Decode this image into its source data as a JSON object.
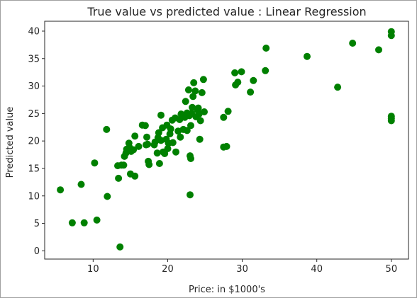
{
  "chart_data": {
    "type": "scatter",
    "title": "True value vs predicted value : Linear Regression",
    "xlabel": "Price: in $1000's",
    "ylabel": "Predicted value",
    "xlim": [
      3.5,
      52.3
    ],
    "ylim": [
      -1.5,
      41.8
    ],
    "xticks": [
      10,
      20,
      30,
      40,
      50
    ],
    "yticks": [
      0,
      5,
      10,
      15,
      20,
      25,
      30,
      35,
      40
    ],
    "marker_color": "#008000",
    "grid": false,
    "points": [
      [
        5.6,
        11.1
      ],
      [
        7.2,
        5.1
      ],
      [
        8.4,
        12.1
      ],
      [
        8.8,
        5.1
      ],
      [
        10.2,
        16.0
      ],
      [
        10.5,
        5.6
      ],
      [
        11.8,
        22.1
      ],
      [
        11.9,
        9.9
      ],
      [
        13.3,
        15.5
      ],
      [
        13.4,
        13.2
      ],
      [
        13.6,
        0.7
      ],
      [
        13.8,
        15.6
      ],
      [
        14.1,
        15.6
      ],
      [
        14.2,
        17.2
      ],
      [
        14.4,
        17.8
      ],
      [
        14.5,
        18.5
      ],
      [
        14.8,
        19.6
      ],
      [
        14.9,
        18.8
      ],
      [
        15.0,
        14.0
      ],
      [
        15.1,
        18.1
      ],
      [
        15.4,
        18.4
      ],
      [
        15.6,
        13.6
      ],
      [
        15.6,
        20.9
      ],
      [
        16.1,
        19.0
      ],
      [
        16.6,
        22.9
      ],
      [
        17.0,
        22.8
      ],
      [
        17.1,
        19.3
      ],
      [
        17.2,
        20.7
      ],
      [
        17.3,
        19.4
      ],
      [
        17.4,
        16.3
      ],
      [
        17.5,
        15.7
      ],
      [
        18.2,
        19.3
      ],
      [
        18.3,
        19.8
      ],
      [
        18.6,
        17.8
      ],
      [
        18.7,
        20.6
      ],
      [
        18.8,
        21.5
      ],
      [
        18.9,
        15.9
      ],
      [
        19.1,
        20.1
      ],
      [
        19.1,
        24.7
      ],
      [
        19.3,
        22.4
      ],
      [
        19.4,
        18.0
      ],
      [
        19.6,
        17.7
      ],
      [
        19.8,
        20.3
      ],
      [
        19.9,
        22.9
      ],
      [
        20.0,
        18.6
      ],
      [
        20.1,
        19.6
      ],
      [
        20.3,
        21.3
      ],
      [
        20.4,
        22.2
      ],
      [
        20.6,
        23.8
      ],
      [
        20.7,
        19.7
      ],
      [
        21.0,
        24.2
      ],
      [
        21.1,
        18.0
      ],
      [
        21.4,
        21.8
      ],
      [
        21.6,
        23.9
      ],
      [
        21.7,
        20.7
      ],
      [
        21.8,
        24.9
      ],
      [
        21.9,
        24.5
      ],
      [
        22.1,
        22.1
      ],
      [
        22.3,
        24.3
      ],
      [
        22.4,
        27.2
      ],
      [
        22.6,
        25.1
      ],
      [
        22.6,
        21.9
      ],
      [
        22.8,
        29.3
      ],
      [
        22.9,
        24.6
      ],
      [
        23.0,
        10.2
      ],
      [
        23.0,
        17.3
      ],
      [
        23.1,
        16.8
      ],
      [
        23.1,
        22.8
      ],
      [
        23.2,
        25.0
      ],
      [
        23.3,
        26.1
      ],
      [
        23.4,
        28.1
      ],
      [
        23.5,
        30.6
      ],
      [
        23.7,
        29.1
      ],
      [
        23.8,
        24.4
      ],
      [
        24.0,
        25.6
      ],
      [
        24.1,
        26.0
      ],
      [
        24.2,
        24.9
      ],
      [
        24.3,
        20.3
      ],
      [
        24.4,
        23.7
      ],
      [
        24.6,
        28.8
      ],
      [
        24.8,
        31.2
      ],
      [
        24.9,
        25.3
      ],
      [
        27.5,
        24.3
      ],
      [
        27.5,
        18.9
      ],
      [
        27.9,
        19.0
      ],
      [
        28.1,
        25.4
      ],
      [
        29.0,
        32.4
      ],
      [
        29.1,
        30.2
      ],
      [
        29.4,
        30.7
      ],
      [
        29.9,
        32.6
      ],
      [
        31.1,
        28.9
      ],
      [
        31.5,
        31.0
      ],
      [
        33.1,
        32.8
      ],
      [
        33.2,
        36.9
      ],
      [
        38.7,
        35.4
      ],
      [
        42.8,
        29.8
      ],
      [
        44.8,
        37.8
      ],
      [
        48.3,
        36.6
      ],
      [
        50.0,
        39.9
      ],
      [
        50.0,
        39.2
      ],
      [
        50.0,
        24.5
      ],
      [
        50.0,
        24.1
      ],
      [
        50.0,
        23.7
      ]
    ]
  }
}
